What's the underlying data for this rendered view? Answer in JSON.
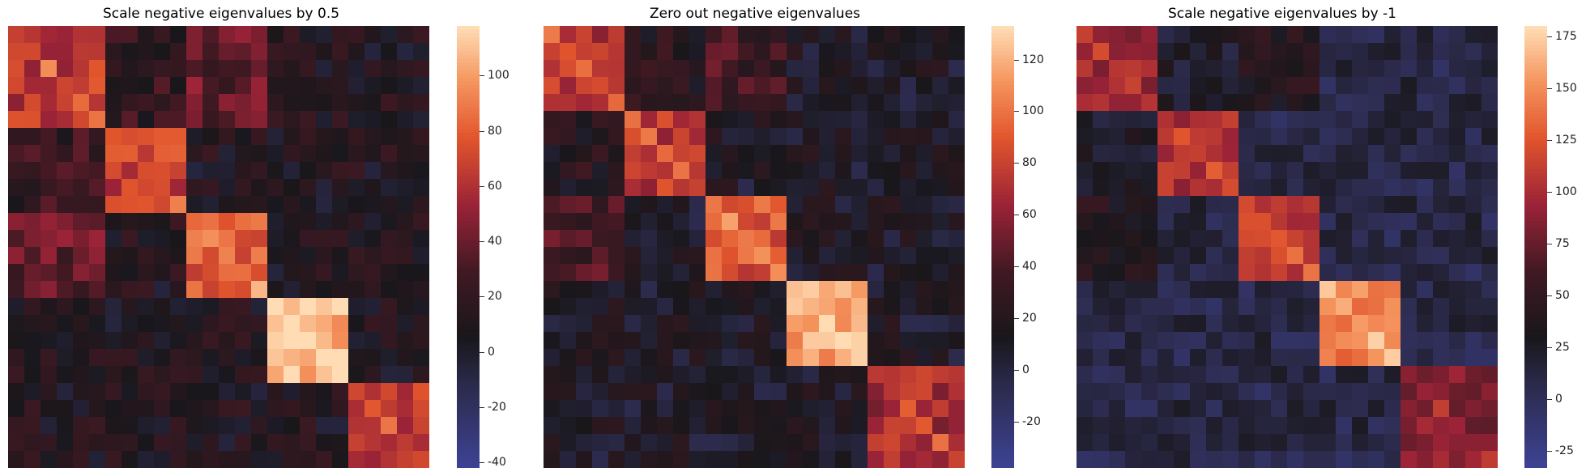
{
  "chart_data": [
    {
      "type": "heatmap",
      "title": "Scale negative eigenvalues by 0.5",
      "matrix_size": 26,
      "blocks": [
        [
          0,
          6
        ],
        [
          6,
          11
        ],
        [
          11,
          16
        ],
        [
          16,
          21
        ],
        [
          21,
          26
        ]
      ],
      "block_intensity": [
        65,
        68,
        80,
        108,
        62
      ],
      "colorbar": {
        "min": -42,
        "max": 118,
        "ticks": [
          -40,
          -20,
          0,
          20,
          40,
          60,
          80,
          100
        ]
      }
    },
    {
      "type": "heatmap",
      "title": "Zero out negative eigenvalues",
      "matrix_size": 26,
      "blocks": [
        [
          0,
          5
        ],
        [
          5,
          10
        ],
        [
          10,
          15
        ],
        [
          15,
          20
        ],
        [
          20,
          26
        ]
      ],
      "block_intensity": [
        72,
        75,
        88,
        118,
        68
      ],
      "colorbar": {
        "min": -38,
        "max": 133,
        "ticks": [
          -20,
          0,
          20,
          40,
          60,
          80,
          100,
          120
        ]
      }
    },
    {
      "type": "heatmap",
      "title": "Scale negative eigenvalues by -1",
      "matrix_size": 26,
      "blocks": [
        [
          0,
          5
        ],
        [
          5,
          10
        ],
        [
          10,
          15
        ],
        [
          15,
          20
        ],
        [
          20,
          26
        ]
      ],
      "block_intensity": [
        95,
        100,
        110,
        145,
        85
      ],
      "colorbar": {
        "min": -33,
        "max": 180,
        "ticks": [
          -25,
          0,
          25,
          50,
          75,
          100,
          125,
          150,
          175
        ]
      }
    }
  ]
}
